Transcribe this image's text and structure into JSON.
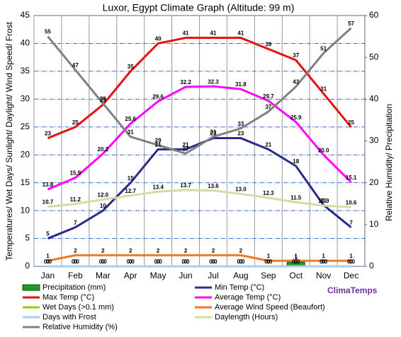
{
  "chart_data": {
    "type": "line",
    "title": "Luxor, Egypt Climate Graph (Altitude: 99 m)",
    "y_label": "Temperatures/ Wet Days/ Sunlight/ Daylight/ Wind Speed/ Frost",
    "y2_label": "Relative Humidity/ Precipitation",
    "brand": "ClimaTemps",
    "categories": [
      "Jan",
      "Feb",
      "Mar",
      "Apr",
      "May",
      "Jun",
      "Jul",
      "Aug",
      "Sep",
      "Oct",
      "Nov",
      "Dec"
    ],
    "ylim": [
      0,
      45
    ],
    "yticks": [
      0,
      5,
      10,
      15,
      20,
      25,
      30,
      35,
      40,
      45
    ],
    "y2lim": [
      0,
      60
    ],
    "y2ticks": [
      0,
      10,
      20,
      30,
      40,
      50,
      60
    ],
    "grid": true,
    "series": [
      {
        "name": "Precipitation (mm)",
        "type": "bar",
        "axis": "y2",
        "color": "#1e9b1e",
        "values": [
          0,
          0,
          0,
          0,
          0,
          0,
          0,
          0,
          0,
          1,
          0,
          0
        ]
      },
      {
        "name": "Min Temp (°C)",
        "color": "#2b2b8c",
        "values": [
          5,
          7,
          10,
          15,
          21,
          21,
          23,
          23,
          21,
          18,
          11,
          7
        ]
      },
      {
        "name": "Max Temp (°C)",
        "color": "#e81010",
        "values": [
          23,
          25,
          29,
          35,
          40,
          41,
          41,
          41,
          39,
          37,
          31,
          25
        ]
      },
      {
        "name": "Average Temp (°C)",
        "color": "#ff00ff",
        "values": [
          13.8,
          15.9,
          20.2,
          25.6,
          29.6,
          32.2,
          32.3,
          31.8,
          29.7,
          25.9,
          20.0,
          15.1
        ],
        "value_labels": [
          "13.8",
          "15.9",
          "20.2",
          "25.6",
          "29.6",
          "32.2",
          "32.3",
          "31.8",
          "29.7",
          "25.9",
          "20.0",
          "15.1"
        ]
      },
      {
        "name": "Wet Days (>0.1 mm)",
        "color": "#99cc00",
        "values": [
          0,
          0,
          0,
          0,
          0,
          0,
          0,
          0,
          0,
          0,
          0,
          0
        ],
        "value_labels": [
          "0.0",
          "0.0",
          "0.0",
          "0.0",
          "0.0",
          "0.0",
          "0.0",
          "0.0",
          "0.0",
          "0.0",
          "0.0",
          "0.0"
        ]
      },
      {
        "name": "Average Wind Speed (Beaufort)",
        "color": "#f07820",
        "values": [
          1,
          2,
          2,
          2,
          2,
          2,
          2,
          2,
          1,
          1,
          1,
          1
        ]
      },
      {
        "name": "Days with Frost",
        "color": "#a8cdf0",
        "values": [
          0,
          0,
          0,
          0,
          0,
          0,
          0,
          0,
          0,
          0,
          0,
          0
        ]
      },
      {
        "name": "Daylength (Hours)",
        "color": "#d6dba4",
        "values": [
          10.7,
          11.2,
          12.0,
          12.7,
          13.4,
          13.7,
          13.6,
          13.0,
          12.3,
          11.5,
          10.9,
          10.6
        ],
        "value_labels": [
          "10.7",
          "11.2",
          "12.0",
          "12.7",
          "13.4",
          "13.7",
          "13.6",
          "13.0",
          "12.3",
          "11.5",
          "10.9",
          "10.6"
        ]
      },
      {
        "name": "Relative Humidity (%)",
        "axis": "y2",
        "color": "#808080",
        "values": [
          55,
          47,
          39,
          31,
          29,
          27,
          31,
          33,
          37,
          43,
          51,
          57
        ]
      }
    ]
  }
}
